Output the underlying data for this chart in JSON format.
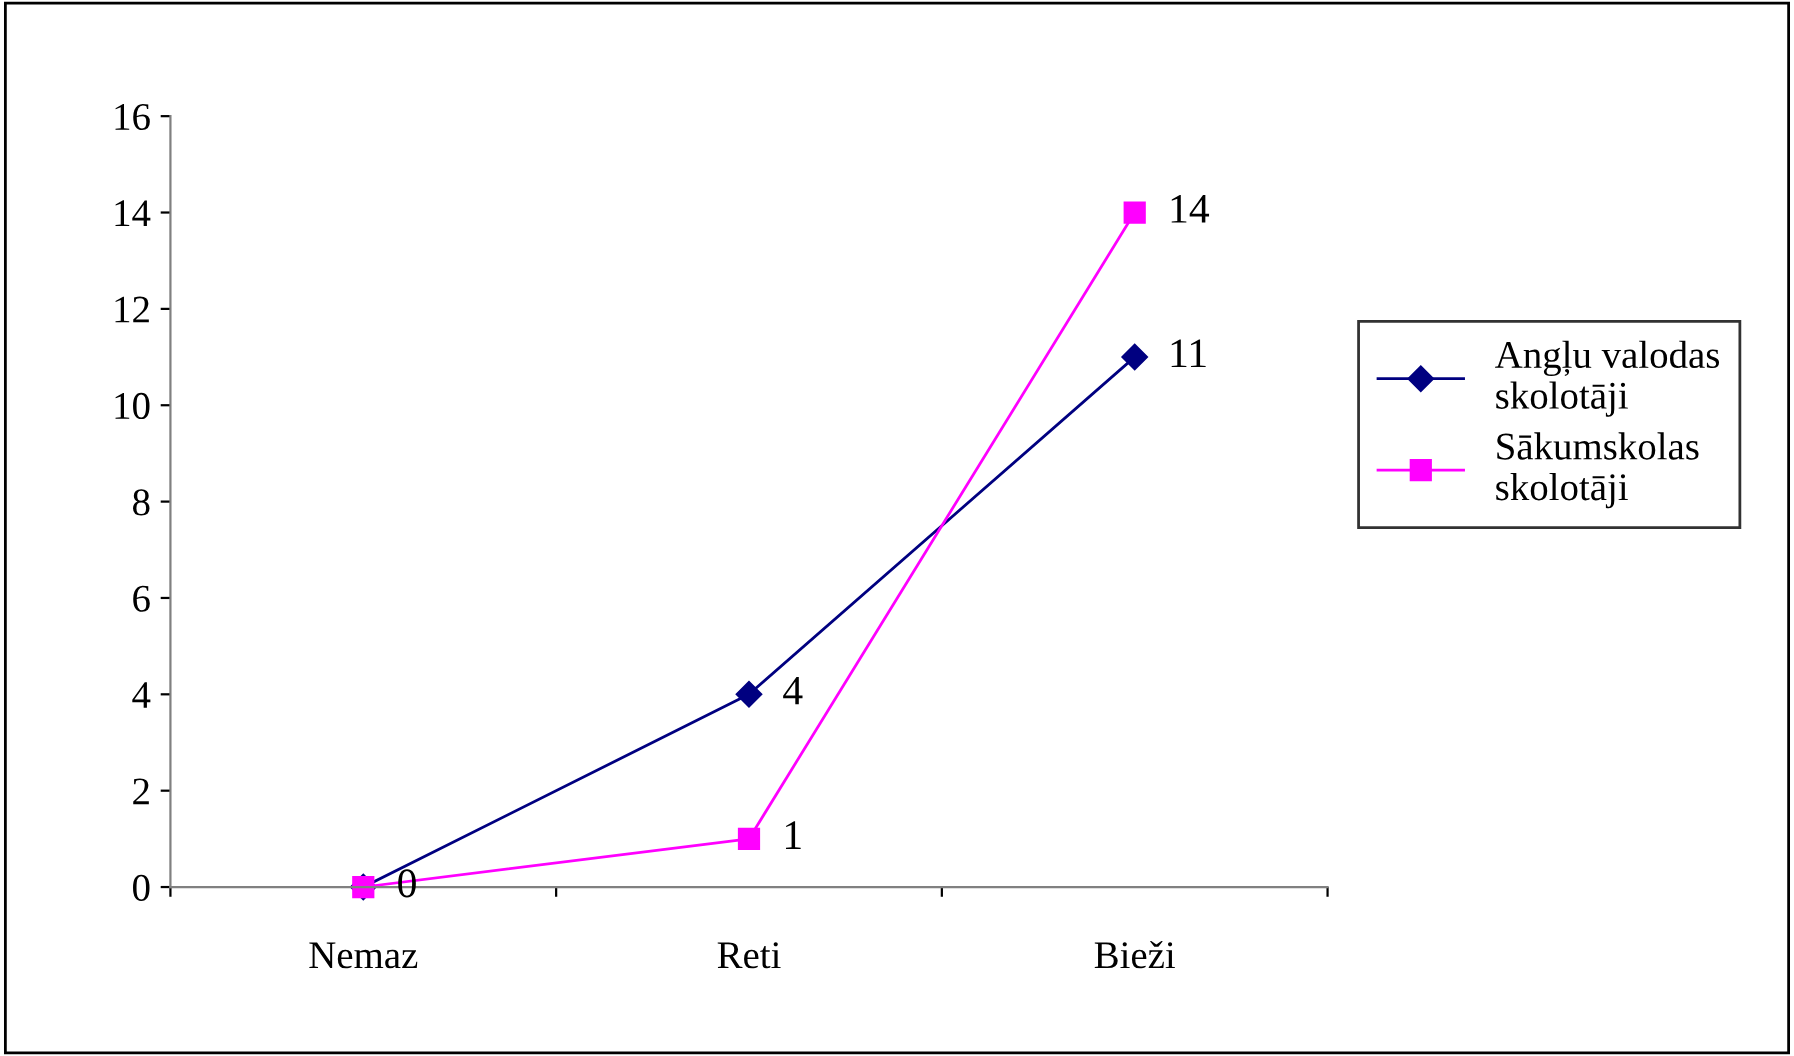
{
  "chart_data": {
    "type": "line",
    "categories": [
      "Nemaz",
      "Reti",
      "Bieži"
    ],
    "series": [
      {
        "name": "Angļu valodas skolotāji",
        "color": "#000080",
        "values": [
          0,
          4,
          11
        ],
        "marker": "diamond",
        "value_labels": [
          null,
          "4",
          "11"
        ]
      },
      {
        "name": "Sākumskolas skolotāji",
        "color": "#ff00ff",
        "values": [
          0,
          1,
          14
        ],
        "marker": "square",
        "value_labels": [
          "0",
          "1",
          "14"
        ]
      }
    ],
    "ylim": [
      0,
      16
    ],
    "yticks": [
      0,
      2,
      4,
      6,
      8,
      10,
      12,
      14,
      16
    ],
    "grid": false,
    "legend": "right"
  }
}
